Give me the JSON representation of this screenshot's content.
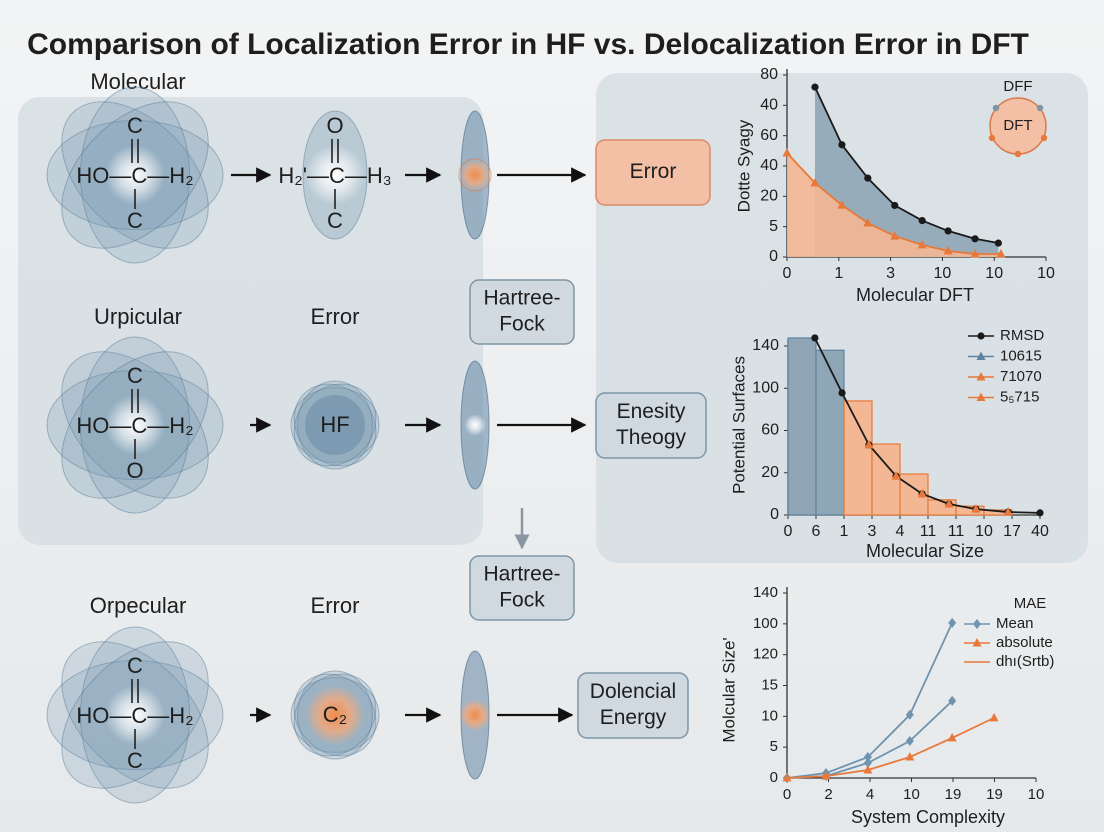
{
  "title": "Comparison of Localization Error in HF  vs. Delocalization Error in DFT",
  "rows": [
    {
      "label": "Molecular",
      "molecule": {
        "top": "C",
        "middle": "HO—C—H₂",
        "bottom": "C"
      },
      "product": {
        "top": "O",
        "middle": "H₂'—C—H₃",
        "bottom": "C"
      },
      "box": [
        "Error"
      ]
    },
    {
      "label": "Urpicular",
      "stage": "Error",
      "molecule": {
        "top": "C",
        "middle": "HO—C—H₂",
        "bottom": "O"
      },
      "sphere": "HF",
      "box": [
        "Enesity",
        "Theogy"
      ]
    },
    {
      "label": "Orpecular",
      "stage": "Error",
      "molecule": {
        "top": "C",
        "middle": "HO—C—H₂",
        "bottom": "C"
      },
      "sphere": "C₂",
      "box": [
        "Dolencial",
        "Energy"
      ]
    }
  ],
  "method_boxes": [
    [
      "Hartree-",
      "Fock"
    ],
    [
      "Hartree-",
      "Fock"
    ]
  ],
  "chart_data": [
    {
      "type": "area",
      "ylabel": "Dotte Syagy",
      "xlabel": "Molecular DFT",
      "xlim": [
        0,
        5
      ],
      "xticks": [
        0,
        1,
        {
          "value": 2,
          "label": "3"
        },
        {
          "value": 3,
          "label": "10"
        },
        {
          "value": 4,
          "label": "10"
        },
        {
          "value": 5,
          "label": "10"
        }
      ],
      "ylim": [
        0,
        6
      ],
      "yticks": [
        0,
        {
          "value": 1,
          "label": "5"
        },
        {
          "value": 2,
          "label": "20"
        },
        {
          "value": 3,
          "label": "40"
        },
        {
          "value": 4,
          "label": "60"
        },
        {
          "value": 5,
          "label": "40"
        },
        {
          "value": 6,
          "label": "80"
        }
      ],
      "series": [
        {
          "color": "#1a1a1a",
          "fill": "#8fa6b6",
          "marker": "circle",
          "x": [
            0.54,
            1.06,
            1.56,
            2.08,
            2.61,
            3.11,
            3.63,
            4.08
          ],
          "values": [
            5.6,
            3.7,
            2.6,
            1.7,
            1.2,
            0.86,
            0.6,
            0.46
          ]
        },
        {
          "color": "#e8793a",
          "fill": "#f3b793",
          "marker": "triangle",
          "x": [
            0,
            0.54,
            1.06,
            1.56,
            2.08,
            2.61,
            3.11,
            3.63,
            4.13
          ],
          "values": [
            3.43,
            2.44,
            1.71,
            1.12,
            0.69,
            0.4,
            0.2,
            0.1,
            0.1
          ]
        }
      ],
      "annotations": [
        "DFF",
        "DFT"
      ]
    },
    {
      "type": "bar",
      "ylabel": "Potential Surfaces",
      "xlabel": "Molecular Size",
      "xlim": [
        0,
        9
      ],
      "xticks": [
        0,
        {
          "value": 1,
          "label": "6"
        },
        {
          "value": 2,
          "label": "1"
        },
        3,
        4,
        {
          "value": 5,
          "label": "11"
        },
        {
          "value": 6,
          "label": "11"
        },
        {
          "value": 7,
          "label": "10"
        },
        {
          "value": 8,
          "label": "17"
        },
        {
          "value": 9,
          "label": "40"
        }
      ],
      "ylim": [
        0,
        4
      ],
      "yticks": [
        0,
        {
          "value": 1,
          "label": "20"
        },
        {
          "value": 2,
          "label": "60"
        },
        {
          "value": 3,
          "label": "100"
        },
        {
          "value": 4,
          "label": "140"
        }
      ],
      "series": [
        {
          "name": "RMSD",
          "type": "line",
          "color": "#1a1a1a",
          "marker": "circle",
          "x": [
            0.96,
            1.93,
            2.89,
            3.86,
            4.79,
            5.75,
            6.71,
            7.86,
            9
          ],
          "values": [
            4.19,
            2.89,
            1.66,
            0.92,
            0.5,
            0.26,
            0.14,
            0.07,
            0.05
          ]
        },
        {
          "name": "10615",
          "type": "bar",
          "color": "#8fa6b6",
          "edge": "#5f84a0",
          "bins": [
            0,
            1,
            2
          ],
          "values": [
            4.19,
            3.9
          ]
        },
        {
          "name": "71070",
          "type": "bar",
          "color": "#f3b793",
          "edge": "#e8793a",
          "bins": [
            2,
            3,
            4,
            5,
            6,
            7,
            8
          ],
          "values": [
            2.7,
            1.68,
            0.97,
            0.36,
            0.21,
            0.12
          ]
        },
        {
          "name": "5₅715",
          "type": "line",
          "line": false,
          "color": "#e8793a",
          "marker": "triangle",
          "x": [
            2.89,
            3.86,
            4.79,
            5.75,
            6.71,
            7.86
          ],
          "values": [
            1.66,
            0.92,
            0.5,
            0.26,
            0.14,
            0.07
          ]
        }
      ]
    },
    {
      "type": "line",
      "ylabel": "Molcular Size'",
      "xlabel": "System Complexity",
      "legend_title": "MAE",
      "xlim": [
        0,
        6
      ],
      "xticks": [
        0,
        {
          "value": 1,
          "label": "2"
        },
        {
          "value": 2,
          "label": "4"
        },
        {
          "value": 3,
          "label": "10"
        },
        {
          "value": 4,
          "label": "19"
        },
        {
          "value": 5,
          "label": "19"
        },
        {
          "value": 6,
          "label": "10"
        }
      ],
      "ylim": [
        0,
        6
      ],
      "yticks": [
        0,
        {
          "value": 1,
          "label": "5"
        },
        {
          "value": 2,
          "label": "10"
        },
        {
          "value": 3,
          "label": "15"
        },
        {
          "value": 4,
          "label": "120"
        },
        {
          "value": 5,
          "label": "100"
        },
        {
          "value": 6,
          "label": "140"
        }
      ],
      "series": [
        {
          "name": "Mean",
          "color": "#6f94b0",
          "marker": "diamond",
          "x": [
            0,
            0.94,
            1.95,
            2.96,
            3.98
          ],
          "values": [
            0,
            0.16,
            0.68,
            2.05,
            5.03
          ]
        },
        {
          "color": "#6f94b0",
          "marker": "diamond",
          "x": [
            0,
            0.94,
            1.95,
            2.96,
            3.98
          ],
          "values": [
            0,
            0.06,
            0.49,
            1.2,
            2.5
          ]
        },
        {
          "name": "absolute",
          "color": "#e8793a",
          "marker": "triangle",
          "x": [
            0,
            0.94,
            1.95,
            2.96,
            3.98,
            4.99
          ],
          "values": [
            0,
            0.06,
            0.26,
            0.68,
            1.3,
            1.95
          ]
        }
      ],
      "annotations": [
        "dhı(Srtb)"
      ]
    }
  ]
}
